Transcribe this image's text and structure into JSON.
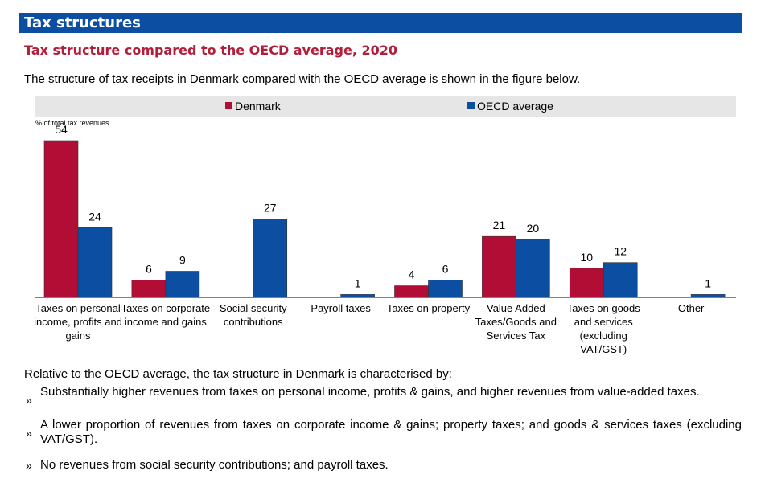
{
  "section": {
    "title": "Tax structures"
  },
  "figure": {
    "title": "Tax structure compared to the OECD average, 2020",
    "intro": "The structure of tax receipts in Denmark compared with the OECD average is shown in the figure below."
  },
  "colors": {
    "denmark": "#b20e35",
    "oecd": "#0b4ea2",
    "banner": "#0b4ea2",
    "subtitle": "#b21e3a"
  },
  "chart_data": {
    "type": "bar",
    "ylabel": "% of total tax revenues",
    "ylim": [
      0,
      54
    ],
    "grid": false,
    "legend_position": "top",
    "categories": [
      [
        "Taxes on personal",
        "income, profits and",
        "gains"
      ],
      [
        "Taxes on corporate",
        "income and gains"
      ],
      [
        "Social security",
        "contributions"
      ],
      [
        "Payroll taxes"
      ],
      [
        "Taxes on property"
      ],
      [
        "Value Added",
        "Taxes/Goods and",
        "Services Tax"
      ],
      [
        "Taxes on goods",
        "and services",
        "(excluding",
        "VAT/GST)"
      ],
      [
        "Other"
      ]
    ],
    "series": [
      {
        "name": "Denmark",
        "values": [
          54,
          6,
          0,
          0,
          4,
          21,
          10,
          0
        ],
        "labels": [
          "54",
          "6",
          "",
          "",
          "4",
          "21",
          "10",
          ""
        ]
      },
      {
        "name": "OECD average",
        "values": [
          24,
          9,
          27,
          1,
          6,
          20,
          12,
          1
        ],
        "labels": [
          "24",
          "9",
          "27",
          "1",
          "6",
          "20",
          "12",
          "1"
        ]
      }
    ]
  },
  "summary": {
    "lead": "Relative to the OECD average, the tax structure in Denmark is characterised by:",
    "bullet_mark": "»",
    "bullets": [
      "Substantially higher revenues from taxes on personal income, profits & gains, and higher revenues from value-added taxes.",
      "A lower proportion of revenues from taxes on corporate income & gains; property taxes; and goods & services taxes (excluding VAT/GST).",
      "No revenues from social security contributions; and payroll taxes."
    ]
  }
}
